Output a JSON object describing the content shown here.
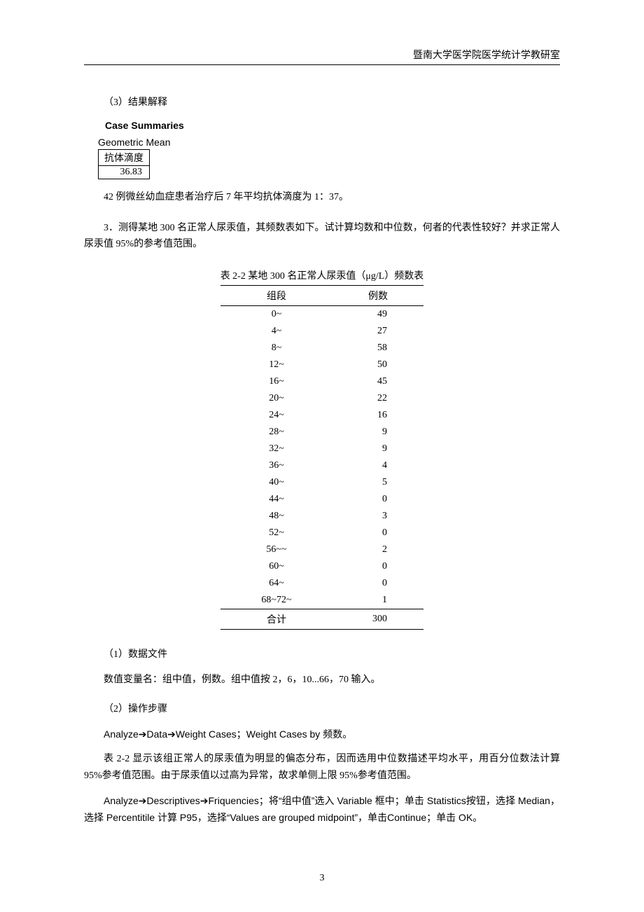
{
  "header": "暨南大学医学院医学统计学教研室",
  "sec3_title": "（3）结果解释",
  "case_summaries_title": "Case Summaries",
  "geo_mean_label": "Geometric Mean",
  "geo_table_header": "抗体滴度",
  "geo_table_value": "36.83",
  "para_42": "42 例微丝幼血症患者治疗后 7 年平均抗体滴度为 1：37。",
  "q3_text": "3．测得某地 300 名正常人尿汞值，其频数表如下。试计算均数和中位数，何者的代表性较好？并求正常人尿汞值 95%的参考值范围。",
  "table_caption": "表 2-2  某地 300 名正常人尿汞值（μg/L）频数表",
  "freq_headers": {
    "col1": "组段",
    "col2": "例数"
  },
  "freq_rows": [
    {
      "seg": "0~",
      "n": "49"
    },
    {
      "seg": "4~",
      "n": "27"
    },
    {
      "seg": "8~",
      "n": "58"
    },
    {
      "seg": "12~",
      "n": "50"
    },
    {
      "seg": "16~",
      "n": "45"
    },
    {
      "seg": "20~",
      "n": "22"
    },
    {
      "seg": "24~",
      "n": "16"
    },
    {
      "seg": "28~",
      "n": "9"
    },
    {
      "seg": "32~",
      "n": "9"
    },
    {
      "seg": "36~",
      "n": "4"
    },
    {
      "seg": "40~",
      "n": "5"
    },
    {
      "seg": "44~",
      "n": "0"
    },
    {
      "seg": "48~",
      "n": "3"
    },
    {
      "seg": "52~",
      "n": "0"
    },
    {
      "seg": "56~~",
      "n": "2"
    },
    {
      "seg": "60~",
      "n": "0"
    },
    {
      "seg": "64~",
      "n": "0"
    },
    {
      "seg": "68~72~",
      "n": "1"
    }
  ],
  "freq_total": {
    "label": "合计",
    "n": "300"
  },
  "sec1_title": "（1）数据文件",
  "sec1_body": "数值变量名：组中值，例数。组中值按 2，6，10...66，70 输入。",
  "sec2_title": "（2）操作步骤",
  "sec2_line1": "Analyze➔Data➔Weight Cases；Weight Cases by 频数。",
  "sec2_line2": "表 2-2 显示该组正常人的尿汞值为明显的偏态分布，因而选用中位数描述平均水平，用百分位数法计算 95%参考值范围。由于尿汞值以过高为异常，故求单侧上限 95%参考值范围。",
  "sec2_line3": "Analyze➔Descriptives➔Friquencies；将“组中值”选入 Variable 框中；单击 Statistics按钮，选择 Median，选择 Percentitile 计算 P95，选择“Values are grouped midpoint”，单击Continue；单击 OK。",
  "page_number": "3"
}
